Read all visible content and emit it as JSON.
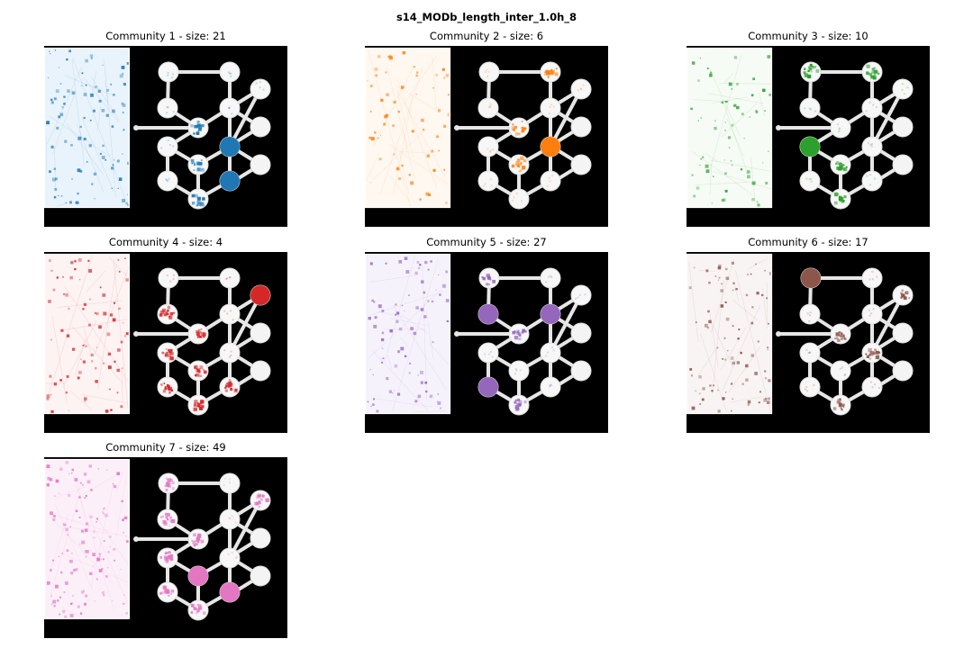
{
  "figure_title": "s14_MODb_length_inter_1.0h_8",
  "panels": [
    {
      "title": "Community 1 - size: 21",
      "color": "#1f77b4",
      "light": "#e9f3fb",
      "highlight_nodes": [
        7,
        10
      ],
      "medium_nodes": [
        6,
        9,
        3
      ],
      "spot_density": 0.35
    },
    {
      "title": "Community 2 - size: 6",
      "color": "#ff7f0e",
      "light": "#fff8f0",
      "highlight_nodes": [
        7
      ],
      "medium_nodes": [
        3,
        6,
        1
      ],
      "spot_density": 0.12
    },
    {
      "title": "Community 3 - size: 10",
      "color": "#2ca02c",
      "light": "#f6fbf5",
      "highlight_nodes": [
        5
      ],
      "medium_nodes": [
        6,
        9,
        1,
        0
      ],
      "spot_density": 0.15
    },
    {
      "title": "Community 4 - size: 4",
      "color": "#d62728",
      "light": "#fdf3f3",
      "highlight_nodes": [
        11
      ],
      "medium_nodes": [
        2,
        3,
        5,
        6,
        8,
        9,
        10
      ],
      "spot_density": 0.25
    },
    {
      "title": "Community 5 - size: 27",
      "color": "#9467bd",
      "light": "#f6f2fb",
      "highlight_nodes": [
        2,
        4,
        8
      ],
      "medium_nodes": [
        0,
        3,
        9
      ],
      "spot_density": 0.25
    },
    {
      "title": "Community 6 - size: 17",
      "color": "#8c564b",
      "light": "#f8f4f3",
      "highlight_nodes": [
        0
      ],
      "medium_nodes": [
        3,
        7,
        9,
        11
      ],
      "spot_density": 0.3
    },
    {
      "title": "Community 7 - size: 49",
      "color": "#e377c2",
      "light": "#fcf0f8",
      "highlight_nodes": [
        6,
        10
      ],
      "medium_nodes": [
        0,
        3,
        2,
        5,
        8,
        9,
        11
      ],
      "spot_density": 0.55
    }
  ]
}
